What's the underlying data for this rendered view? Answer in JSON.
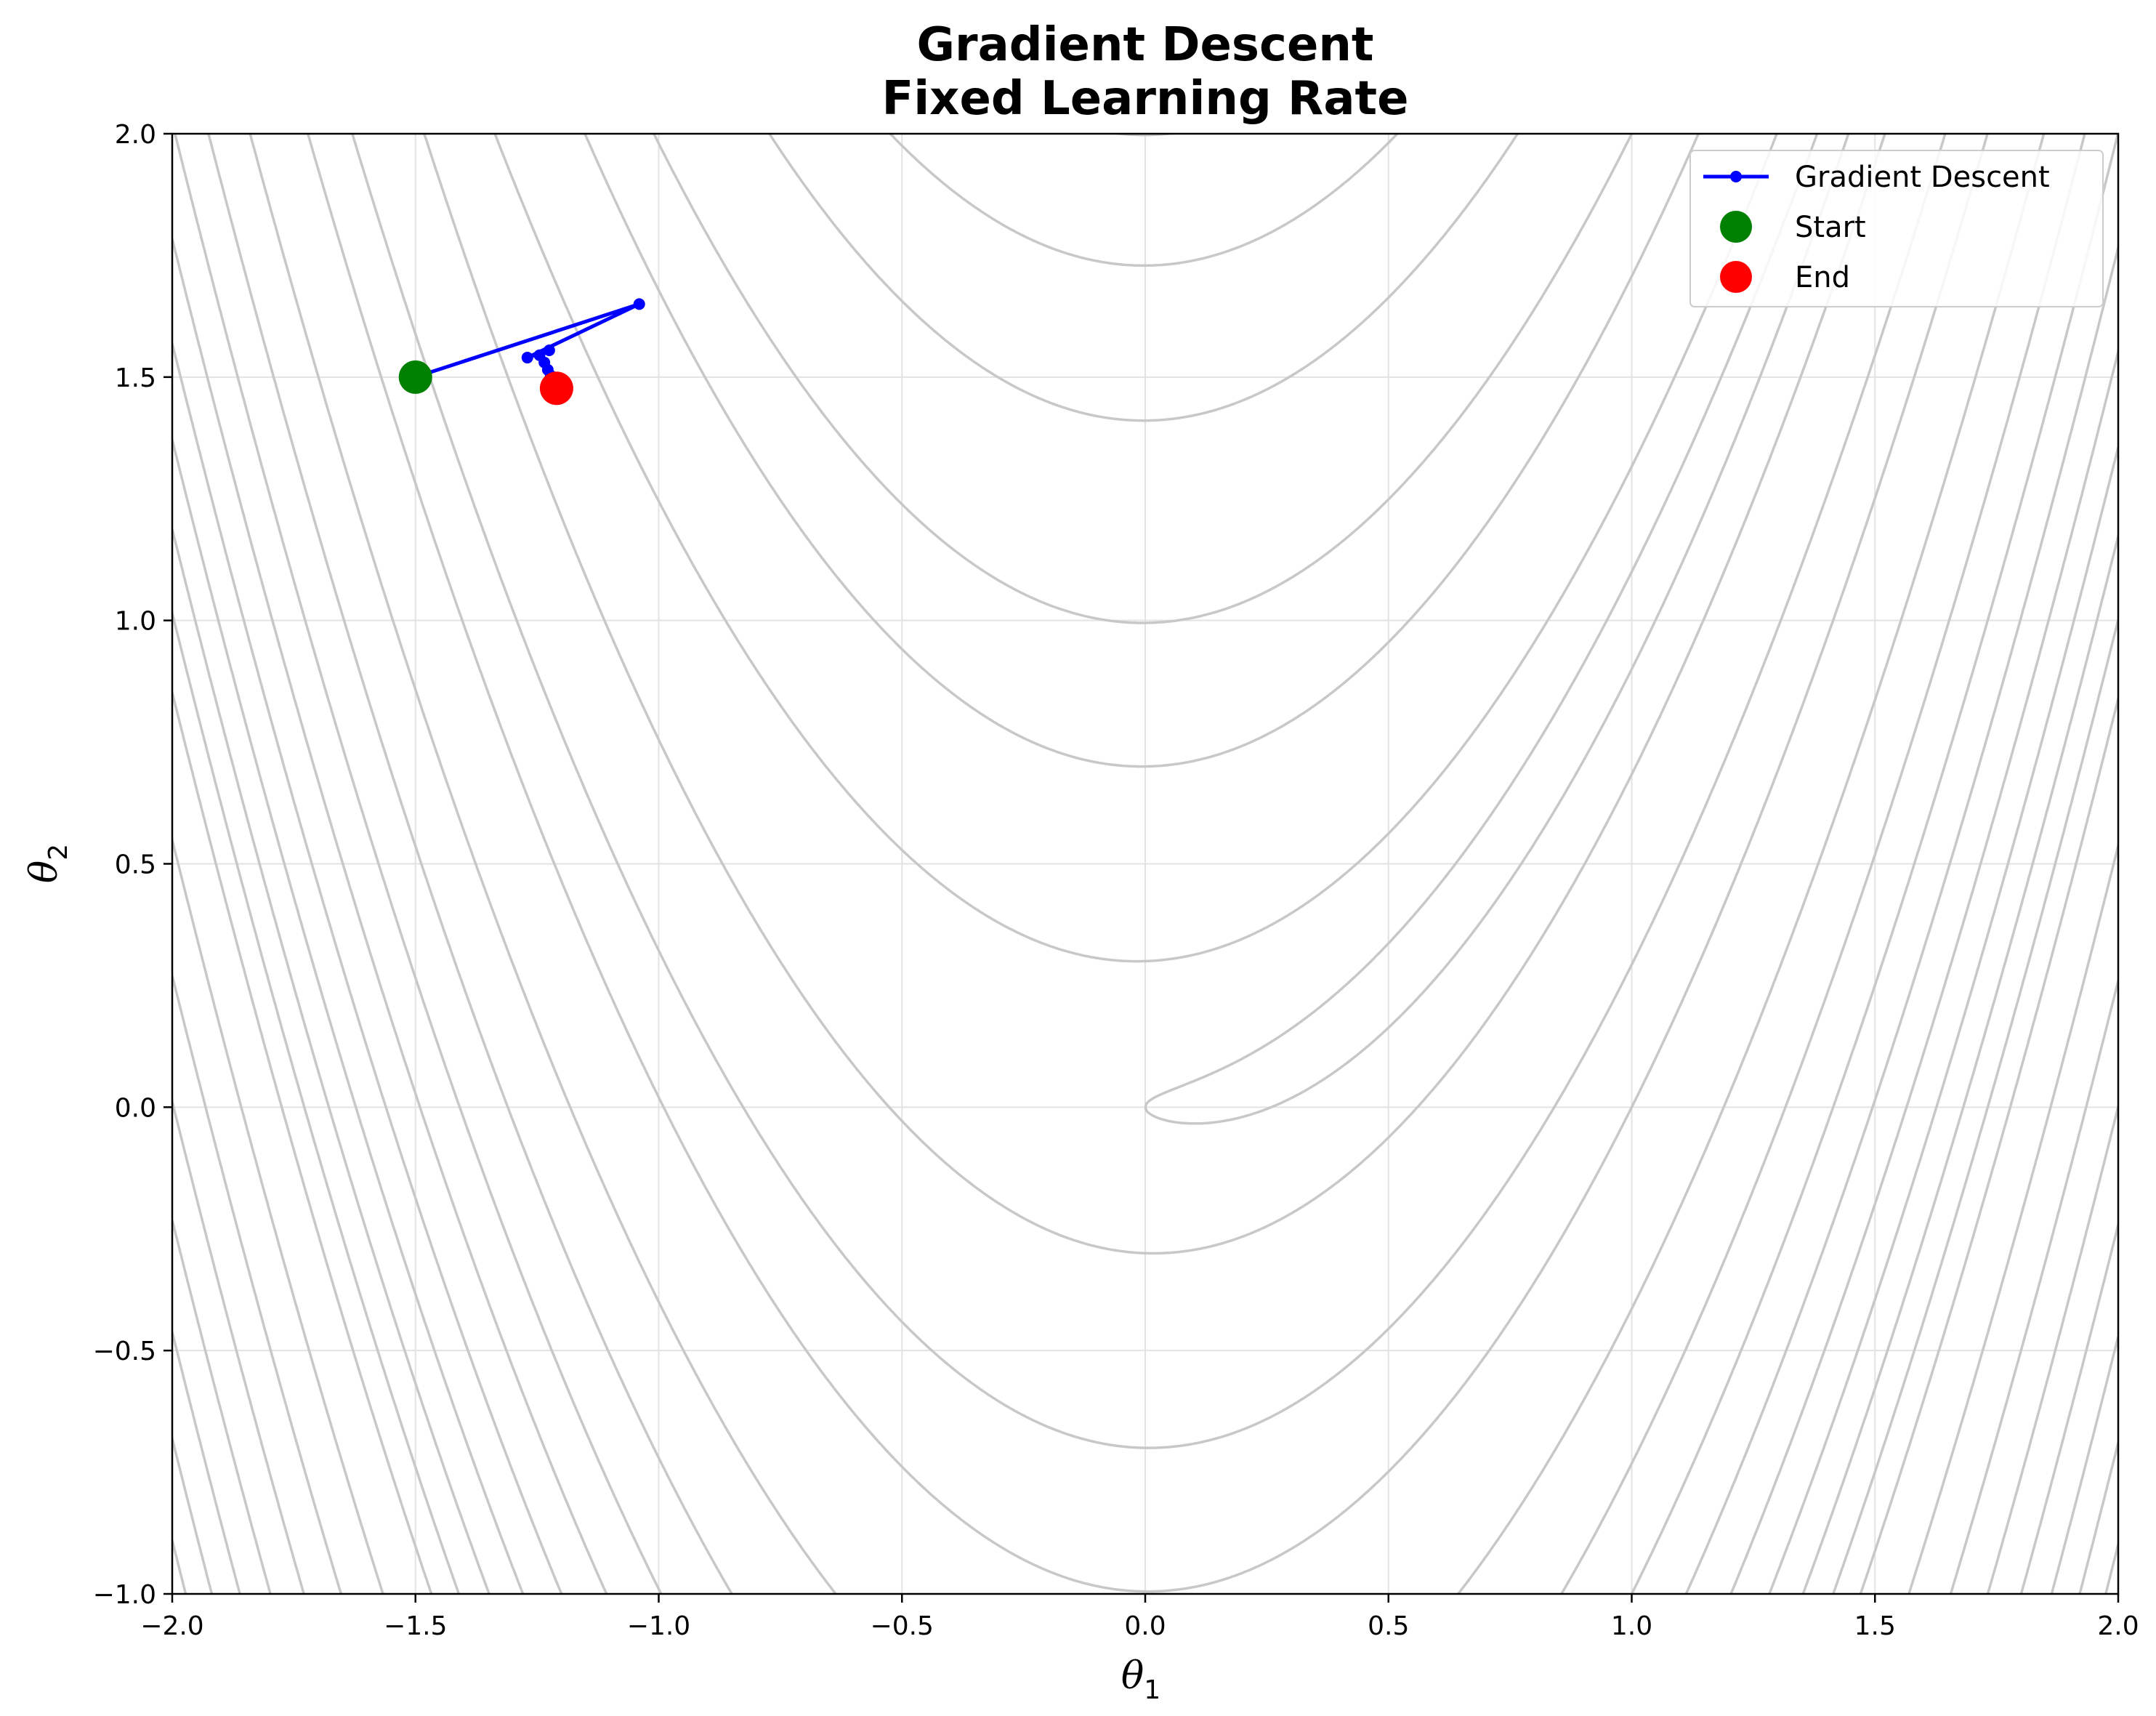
{
  "chart_data": {
    "type": "line",
    "title_lines": [
      "Gradient Descent",
      "Fixed Learning Rate"
    ],
    "xlabel": "θ",
    "xlabel_sub": "1",
    "ylabel": "θ",
    "ylabel_sub": "2",
    "xlim": [
      -2.0,
      2.0
    ],
    "ylim": [
      -1.0,
      2.0
    ],
    "xticks": [
      -2.0,
      -1.5,
      -1.0,
      -0.5,
      0.0,
      0.5,
      1.0,
      1.5,
      2.0
    ],
    "xtick_labels": [
      "−2.0",
      "−1.5",
      "−1.0",
      "−0.5",
      "0.0",
      "0.5",
      "1.0",
      "1.5",
      "2.0"
    ],
    "yticks": [
      -1.0,
      -0.5,
      0.0,
      0.5,
      1.0,
      1.5,
      2.0
    ],
    "ytick_labels": [
      "−1.0",
      "−0.5",
      "0.0",
      "0.5",
      "1.0",
      "1.5",
      "2.0"
    ],
    "grid": true,
    "background_contours": {
      "description_function": "Rosenbrock",
      "levels": [
        1,
        10,
        50,
        100,
        200,
        300,
        400,
        500,
        600,
        700,
        800,
        900,
        1000,
        1200,
        1400,
        1600,
        1800,
        2000,
        2200,
        2400,
        2600
      ],
      "color": "#c8c8c8"
    },
    "series": [
      {
        "name": "Gradient Descent",
        "color": "#0000ff",
        "x": [
          -1.5,
          -1.04,
          -1.27,
          -1.225,
          -1.245,
          -1.235,
          -1.228,
          -1.222,
          -1.218,
          -1.214,
          -1.21
        ],
        "y": [
          1.5,
          1.65,
          1.54,
          1.555,
          1.545,
          1.53,
          1.515,
          1.503,
          1.493,
          1.485,
          1.477
        ]
      }
    ],
    "start": {
      "name": "Start",
      "x": -1.5,
      "y": 1.5,
      "color": "#008000"
    },
    "end": {
      "name": "End",
      "x": -1.21,
      "y": 1.477,
      "color": "#ff0000"
    },
    "legend": {
      "placement": "top-right",
      "entries": [
        "Gradient Descent",
        "Start",
        "End"
      ]
    }
  }
}
